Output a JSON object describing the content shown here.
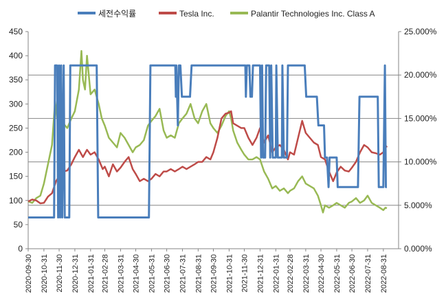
{
  "chart_data": {
    "type": "line",
    "legend": {
      "placement": "top",
      "entries": [
        "세전수익률",
        "Tesla Inc.",
        "Palantir Technologies Inc. Class A"
      ]
    },
    "x_ticks": [
      "2020-09-30",
      "2020-10-31",
      "2020-11-30",
      "2020-12-31",
      "2021-01-31",
      "2021-02-28",
      "2021-03-31",
      "2021-04-30",
      "2021-05-31",
      "2021-06-30",
      "2021-07-31",
      "2021-08-31",
      "2021-09-30",
      "2021-10-31",
      "2021-11-30",
      "2021-12-31",
      "2022-01-31",
      "2022-02-28",
      "2022-03-31",
      "2022-04-30",
      "2022-05-31",
      "2022-06-30",
      "2022-07-31",
      "2022-08-31"
    ],
    "y_left": {
      "min": 0,
      "max": 450,
      "ticks": [
        "0",
        "50",
        "100",
        "150",
        "200",
        "250",
        "300",
        "350",
        "400",
        "450"
      ]
    },
    "y_right": {
      "min": 0,
      "max": 25,
      "ticks": [
        "0.000%",
        "5.000%",
        "10.000%",
        "15.000%",
        "20.000%",
        "25.000%"
      ]
    },
    "gridlines_left": [
      90,
      180,
      270,
      360
    ],
    "colors": {
      "return": "#4a7ebb",
      "tesla": "#be4b48",
      "palantir": "#98b954",
      "grid": "#868686"
    },
    "series": [
      {
        "name": "세전수익률",
        "axis": "right",
        "points": [
          [
            "2020-09-30",
            3.6
          ],
          [
            "2020-11-20",
            3.6
          ],
          [
            "2020-11-22",
            21.1
          ],
          [
            "2020-11-26",
            21.1
          ],
          [
            "2020-11-28",
            3.6
          ],
          [
            "2020-11-30",
            21.1
          ],
          [
            "2020-12-02",
            3.6
          ],
          [
            "2020-12-04",
            21.1
          ],
          [
            "2020-12-06",
            3.6
          ],
          [
            "2020-12-09",
            21.1
          ],
          [
            "2020-12-11",
            3.6
          ],
          [
            "2020-12-20",
            3.6
          ],
          [
            "2020-12-22",
            21.1
          ],
          [
            "2021-02-12",
            21.1
          ],
          [
            "2021-02-15",
            3.6
          ],
          [
            "2021-05-26",
            3.6
          ],
          [
            "2021-05-29",
            21.1
          ],
          [
            "2021-07-17",
            21.1
          ],
          [
            "2021-07-18",
            17.5
          ],
          [
            "2021-07-19",
            21.1
          ],
          [
            "2021-07-22",
            14.2
          ],
          [
            "2021-07-24",
            21.1
          ],
          [
            "2021-07-27",
            21.1
          ],
          [
            "2021-07-30",
            17.5
          ],
          [
            "2021-08-15",
            17.5
          ],
          [
            "2021-08-18",
            21.1
          ],
          [
            "2021-12-02",
            21.1
          ],
          [
            "2021-12-03",
            17.5
          ],
          [
            "2021-12-05",
            21.1
          ],
          [
            "2021-12-10",
            21.1
          ],
          [
            "2021-12-12",
            17.5
          ],
          [
            "2021-12-15",
            17.5
          ],
          [
            "2021-12-17",
            21.1
          ],
          [
            "2021-12-31",
            21.1
          ],
          [
            "2022-01-02",
            10.5
          ],
          [
            "2022-01-04",
            21.1
          ],
          [
            "2022-01-06",
            10.5
          ],
          [
            "2022-01-10",
            10.5
          ],
          [
            "2022-01-12",
            21.1
          ],
          [
            "2022-01-18",
            21.1
          ],
          [
            "2022-01-20",
            10.5
          ],
          [
            "2022-01-22",
            21.1
          ],
          [
            "2022-01-25",
            10.5
          ],
          [
            "2022-01-31",
            10.5
          ],
          [
            "2022-02-01",
            21.1
          ],
          [
            "2022-02-04",
            10.5
          ],
          [
            "2022-02-12",
            10.5
          ],
          [
            "2022-02-13",
            21.1
          ],
          [
            "2022-02-16",
            10.5
          ],
          [
            "2022-02-22",
            10.5
          ],
          [
            "2022-02-24",
            21.1
          ],
          [
            "2022-03-29",
            21.1
          ],
          [
            "2022-04-01",
            17.5
          ],
          [
            "2022-04-22",
            17.5
          ],
          [
            "2022-04-25",
            14.2
          ],
          [
            "2022-05-06",
            14.2
          ],
          [
            "2022-05-08",
            10.5
          ],
          [
            "2022-05-12",
            10.5
          ],
          [
            "2022-05-15",
            7.1
          ],
          [
            "2022-05-17",
            10.5
          ],
          [
            "2022-05-31",
            10.5
          ],
          [
            "2022-06-02",
            7.1
          ],
          [
            "2022-07-12",
            7.1
          ],
          [
            "2022-07-15",
            17.5
          ],
          [
            "2022-08-20",
            17.5
          ],
          [
            "2022-08-22",
            7.1
          ],
          [
            "2022-08-31",
            7.1
          ],
          [
            "2022-09-03",
            21.1
          ],
          [
            "2022-09-05",
            7.1
          ],
          [
            "2022-09-07",
            7.1
          ]
        ]
      },
      {
        "name": "Tesla Inc.",
        "axis": "left",
        "points": [
          [
            "2020-09-30",
            98
          ],
          [
            "2020-10-08",
            102
          ],
          [
            "2020-10-16",
            100
          ],
          [
            "2020-10-24",
            94
          ],
          [
            "2020-10-31",
            95
          ],
          [
            "2020-11-08",
            108
          ],
          [
            "2020-11-16",
            115
          ],
          [
            "2020-11-24",
            140
          ],
          [
            "2020-11-30",
            150
          ],
          [
            "2020-12-08",
            160
          ],
          [
            "2020-12-16",
            162
          ],
          [
            "2020-12-24",
            175
          ],
          [
            "2020-12-31",
            190
          ],
          [
            "2021-01-08",
            205
          ],
          [
            "2021-01-16",
            190
          ],
          [
            "2021-01-24",
            205
          ],
          [
            "2021-01-31",
            195
          ],
          [
            "2021-02-08",
            200
          ],
          [
            "2021-02-16",
            185
          ],
          [
            "2021-02-24",
            165
          ],
          [
            "2021-02-28",
            170
          ],
          [
            "2021-03-08",
            150
          ],
          [
            "2021-03-16",
            175
          ],
          [
            "2021-03-24",
            160
          ],
          [
            "2021-03-31",
            168
          ],
          [
            "2021-04-08",
            180
          ],
          [
            "2021-04-16",
            190
          ],
          [
            "2021-04-24",
            165
          ],
          [
            "2021-04-30",
            155
          ],
          [
            "2021-05-08",
            140
          ],
          [
            "2021-05-16",
            145
          ],
          [
            "2021-05-24",
            140
          ],
          [
            "2021-05-31",
            145
          ],
          [
            "2021-06-08",
            155
          ],
          [
            "2021-06-16",
            150
          ],
          [
            "2021-06-24",
            160
          ],
          [
            "2021-06-30",
            160
          ],
          [
            "2021-07-08",
            165
          ],
          [
            "2021-07-16",
            160
          ],
          [
            "2021-07-24",
            165
          ],
          [
            "2021-07-31",
            170
          ],
          [
            "2021-08-08",
            165
          ],
          [
            "2021-08-16",
            170
          ],
          [
            "2021-08-24",
            175
          ],
          [
            "2021-08-31",
            180
          ],
          [
            "2021-09-08",
            180
          ],
          [
            "2021-09-16",
            190
          ],
          [
            "2021-09-24",
            185
          ],
          [
            "2021-09-30",
            200
          ],
          [
            "2021-10-08",
            230
          ],
          [
            "2021-10-16",
            270
          ],
          [
            "2021-10-24",
            280
          ],
          [
            "2021-10-31",
            282
          ],
          [
            "2021-11-04",
            285
          ],
          [
            "2021-11-08",
            260
          ],
          [
            "2021-11-16",
            255
          ],
          [
            "2021-11-24",
            250
          ],
          [
            "2021-11-30",
            250
          ],
          [
            "2021-12-08",
            230
          ],
          [
            "2021-12-16",
            215
          ],
          [
            "2021-12-24",
            230
          ],
          [
            "2021-12-31",
            250
          ],
          [
            "2022-01-08",
            220
          ],
          [
            "2022-01-16",
            235
          ],
          [
            "2022-01-24",
            200
          ],
          [
            "2022-01-31",
            210
          ],
          [
            "2022-02-08",
            215
          ],
          [
            "2022-02-16",
            205
          ],
          [
            "2022-02-24",
            185
          ],
          [
            "2022-02-28",
            200
          ],
          [
            "2022-03-08",
            195
          ],
          [
            "2022-03-16",
            230
          ],
          [
            "2022-03-24",
            265
          ],
          [
            "2022-03-31",
            240
          ],
          [
            "2022-04-08",
            230
          ],
          [
            "2022-04-16",
            220
          ],
          [
            "2022-04-24",
            215
          ],
          [
            "2022-04-30",
            190
          ],
          [
            "2022-05-08",
            185
          ],
          [
            "2022-05-16",
            160
          ],
          [
            "2022-05-24",
            140
          ],
          [
            "2022-05-31",
            158
          ],
          [
            "2022-06-08",
            170
          ],
          [
            "2022-06-16",
            162
          ],
          [
            "2022-06-24",
            160
          ],
          [
            "2022-06-30",
            168
          ],
          [
            "2022-07-08",
            180
          ],
          [
            "2022-07-16",
            200
          ],
          [
            "2022-07-24",
            215
          ],
          [
            "2022-07-31",
            210
          ],
          [
            "2022-08-08",
            200
          ],
          [
            "2022-08-16",
            198
          ],
          [
            "2022-08-24",
            195
          ],
          [
            "2022-08-31",
            200
          ],
          [
            "2022-09-04",
            215
          ],
          [
            "2022-09-07",
            210
          ]
        ]
      },
      {
        "name": "Palantir Technologies Inc. Class A",
        "axis": "left",
        "points": [
          [
            "2020-09-30",
            98
          ],
          [
            "2020-10-08",
            95
          ],
          [
            "2020-10-16",
            105
          ],
          [
            "2020-10-24",
            110
          ],
          [
            "2020-10-31",
            135
          ],
          [
            "2020-11-08",
            175
          ],
          [
            "2020-11-16",
            215
          ],
          [
            "2020-11-22",
            305
          ],
          [
            "2020-11-26",
            270
          ],
          [
            "2020-11-30",
            285
          ],
          [
            "2020-12-04",
            300
          ],
          [
            "2020-12-08",
            260
          ],
          [
            "2020-12-16",
            250
          ],
          [
            "2020-12-24",
            270
          ],
          [
            "2020-12-31",
            285
          ],
          [
            "2021-01-08",
            330
          ],
          [
            "2021-01-13",
            410
          ],
          [
            "2021-01-16",
            350
          ],
          [
            "2021-01-20",
            330
          ],
          [
            "2021-01-24",
            400
          ],
          [
            "2021-01-31",
            320
          ],
          [
            "2021-02-08",
            330
          ],
          [
            "2021-02-16",
            300
          ],
          [
            "2021-02-22",
            270
          ],
          [
            "2021-02-28",
            255
          ],
          [
            "2021-03-08",
            230
          ],
          [
            "2021-03-16",
            220
          ],
          [
            "2021-03-24",
            210
          ],
          [
            "2021-03-31",
            240
          ],
          [
            "2021-04-08",
            230
          ],
          [
            "2021-04-16",
            215
          ],
          [
            "2021-04-24",
            200
          ],
          [
            "2021-04-30",
            210
          ],
          [
            "2021-05-08",
            215
          ],
          [
            "2021-05-16",
            225
          ],
          [
            "2021-05-24",
            255
          ],
          [
            "2021-05-31",
            265
          ],
          [
            "2021-06-08",
            275
          ],
          [
            "2021-06-16",
            290
          ],
          [
            "2021-06-24",
            245
          ],
          [
            "2021-06-30",
            230
          ],
          [
            "2021-07-08",
            235
          ],
          [
            "2021-07-16",
            230
          ],
          [
            "2021-07-24",
            260
          ],
          [
            "2021-07-31",
            270
          ],
          [
            "2021-08-08",
            280
          ],
          [
            "2021-08-16",
            300
          ],
          [
            "2021-08-24",
            270
          ],
          [
            "2021-08-31",
            260
          ],
          [
            "2021-09-08",
            285
          ],
          [
            "2021-09-16",
            300
          ],
          [
            "2021-09-24",
            260
          ],
          [
            "2021-09-30",
            250
          ],
          [
            "2021-10-08",
            240
          ],
          [
            "2021-10-16",
            255
          ],
          [
            "2021-10-24",
            275
          ],
          [
            "2021-10-31",
            285
          ],
          [
            "2021-11-04",
            270
          ],
          [
            "2021-11-08",
            245
          ],
          [
            "2021-11-16",
            220
          ],
          [
            "2021-11-24",
            205
          ],
          [
            "2021-11-30",
            195
          ],
          [
            "2021-12-08",
            185
          ],
          [
            "2021-12-16",
            185
          ],
          [
            "2021-12-24",
            190
          ],
          [
            "2021-12-31",
            185
          ],
          [
            "2022-01-08",
            160
          ],
          [
            "2022-01-16",
            145
          ],
          [
            "2022-01-24",
            125
          ],
          [
            "2022-01-31",
            130
          ],
          [
            "2022-02-08",
            120
          ],
          [
            "2022-02-16",
            125
          ],
          [
            "2022-02-24",
            115
          ],
          [
            "2022-02-28",
            120
          ],
          [
            "2022-03-08",
            125
          ],
          [
            "2022-03-16",
            140
          ],
          [
            "2022-03-24",
            150
          ],
          [
            "2022-03-31",
            135
          ],
          [
            "2022-04-08",
            130
          ],
          [
            "2022-04-16",
            125
          ],
          [
            "2022-04-24",
            110
          ],
          [
            "2022-04-30",
            90
          ],
          [
            "2022-05-04",
            75
          ],
          [
            "2022-05-08",
            90
          ],
          [
            "2022-05-16",
            85
          ],
          [
            "2022-05-24",
            90
          ],
          [
            "2022-05-31",
            95
          ],
          [
            "2022-06-08",
            90
          ],
          [
            "2022-06-16",
            85
          ],
          [
            "2022-06-24",
            95
          ],
          [
            "2022-06-30",
            98
          ],
          [
            "2022-07-08",
            105
          ],
          [
            "2022-07-16",
            95
          ],
          [
            "2022-07-24",
            100
          ],
          [
            "2022-07-31",
            110
          ],
          [
            "2022-08-08",
            95
          ],
          [
            "2022-08-16",
            90
          ],
          [
            "2022-08-24",
            85
          ],
          [
            "2022-08-31",
            80
          ],
          [
            "2022-09-04",
            85
          ],
          [
            "2022-09-07",
            84
          ]
        ]
      }
    ]
  }
}
